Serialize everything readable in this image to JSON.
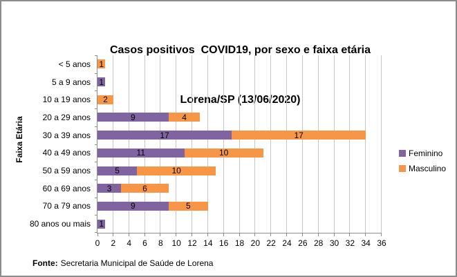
{
  "window": {
    "background": "#FFFFFF",
    "border_color": "#8C8C8C"
  },
  "title": {
    "line1": "Casos positivos  COVID19, por sexo e faixa etária",
    "line2": "Lorena/SP (13/06/2020)"
  },
  "footer": {
    "label": "Fonte:",
    "text": "Secretaria Municipal de Saúde de Lorena"
  },
  "chart_data": {
    "type": "bar",
    "orientation": "horizontal",
    "stacked": true,
    "title": "Casos positivos COVID19, por sexo e faixa etária — Lorena/SP (13/06/2020)",
    "ylabel": "Faixa Etária",
    "xlabel": "",
    "categories": [
      "< 5 anos",
      "5 a 9 anos",
      "10 a 19 anos",
      "20 a 29 anos",
      "30 a 39 anos",
      "40 a 49 anos",
      "50 a 59 anos",
      "60 a 69 anos",
      "70 a 79 anos",
      "80 anos ou mais"
    ],
    "series": [
      {
        "name": "Feminino",
        "color": "#8064A2",
        "values": [
          0,
          1,
          0,
          9,
          17,
          11,
          5,
          3,
          9,
          1
        ]
      },
      {
        "name": "Masculino",
        "color": "#F79646",
        "values": [
          1,
          0,
          2,
          4,
          17,
          10,
          10,
          6,
          5,
          0
        ]
      }
    ],
    "xlim": [
      0,
      36
    ],
    "xticks": [
      0,
      2,
      4,
      6,
      8,
      10,
      12,
      14,
      16,
      18,
      20,
      22,
      24,
      26,
      28,
      30,
      32,
      34,
      36
    ],
    "grid": true,
    "grid_color": "#C8C8C8",
    "axis_color": "#8E8E8E",
    "legend_position": "right",
    "data_labels": true
  }
}
